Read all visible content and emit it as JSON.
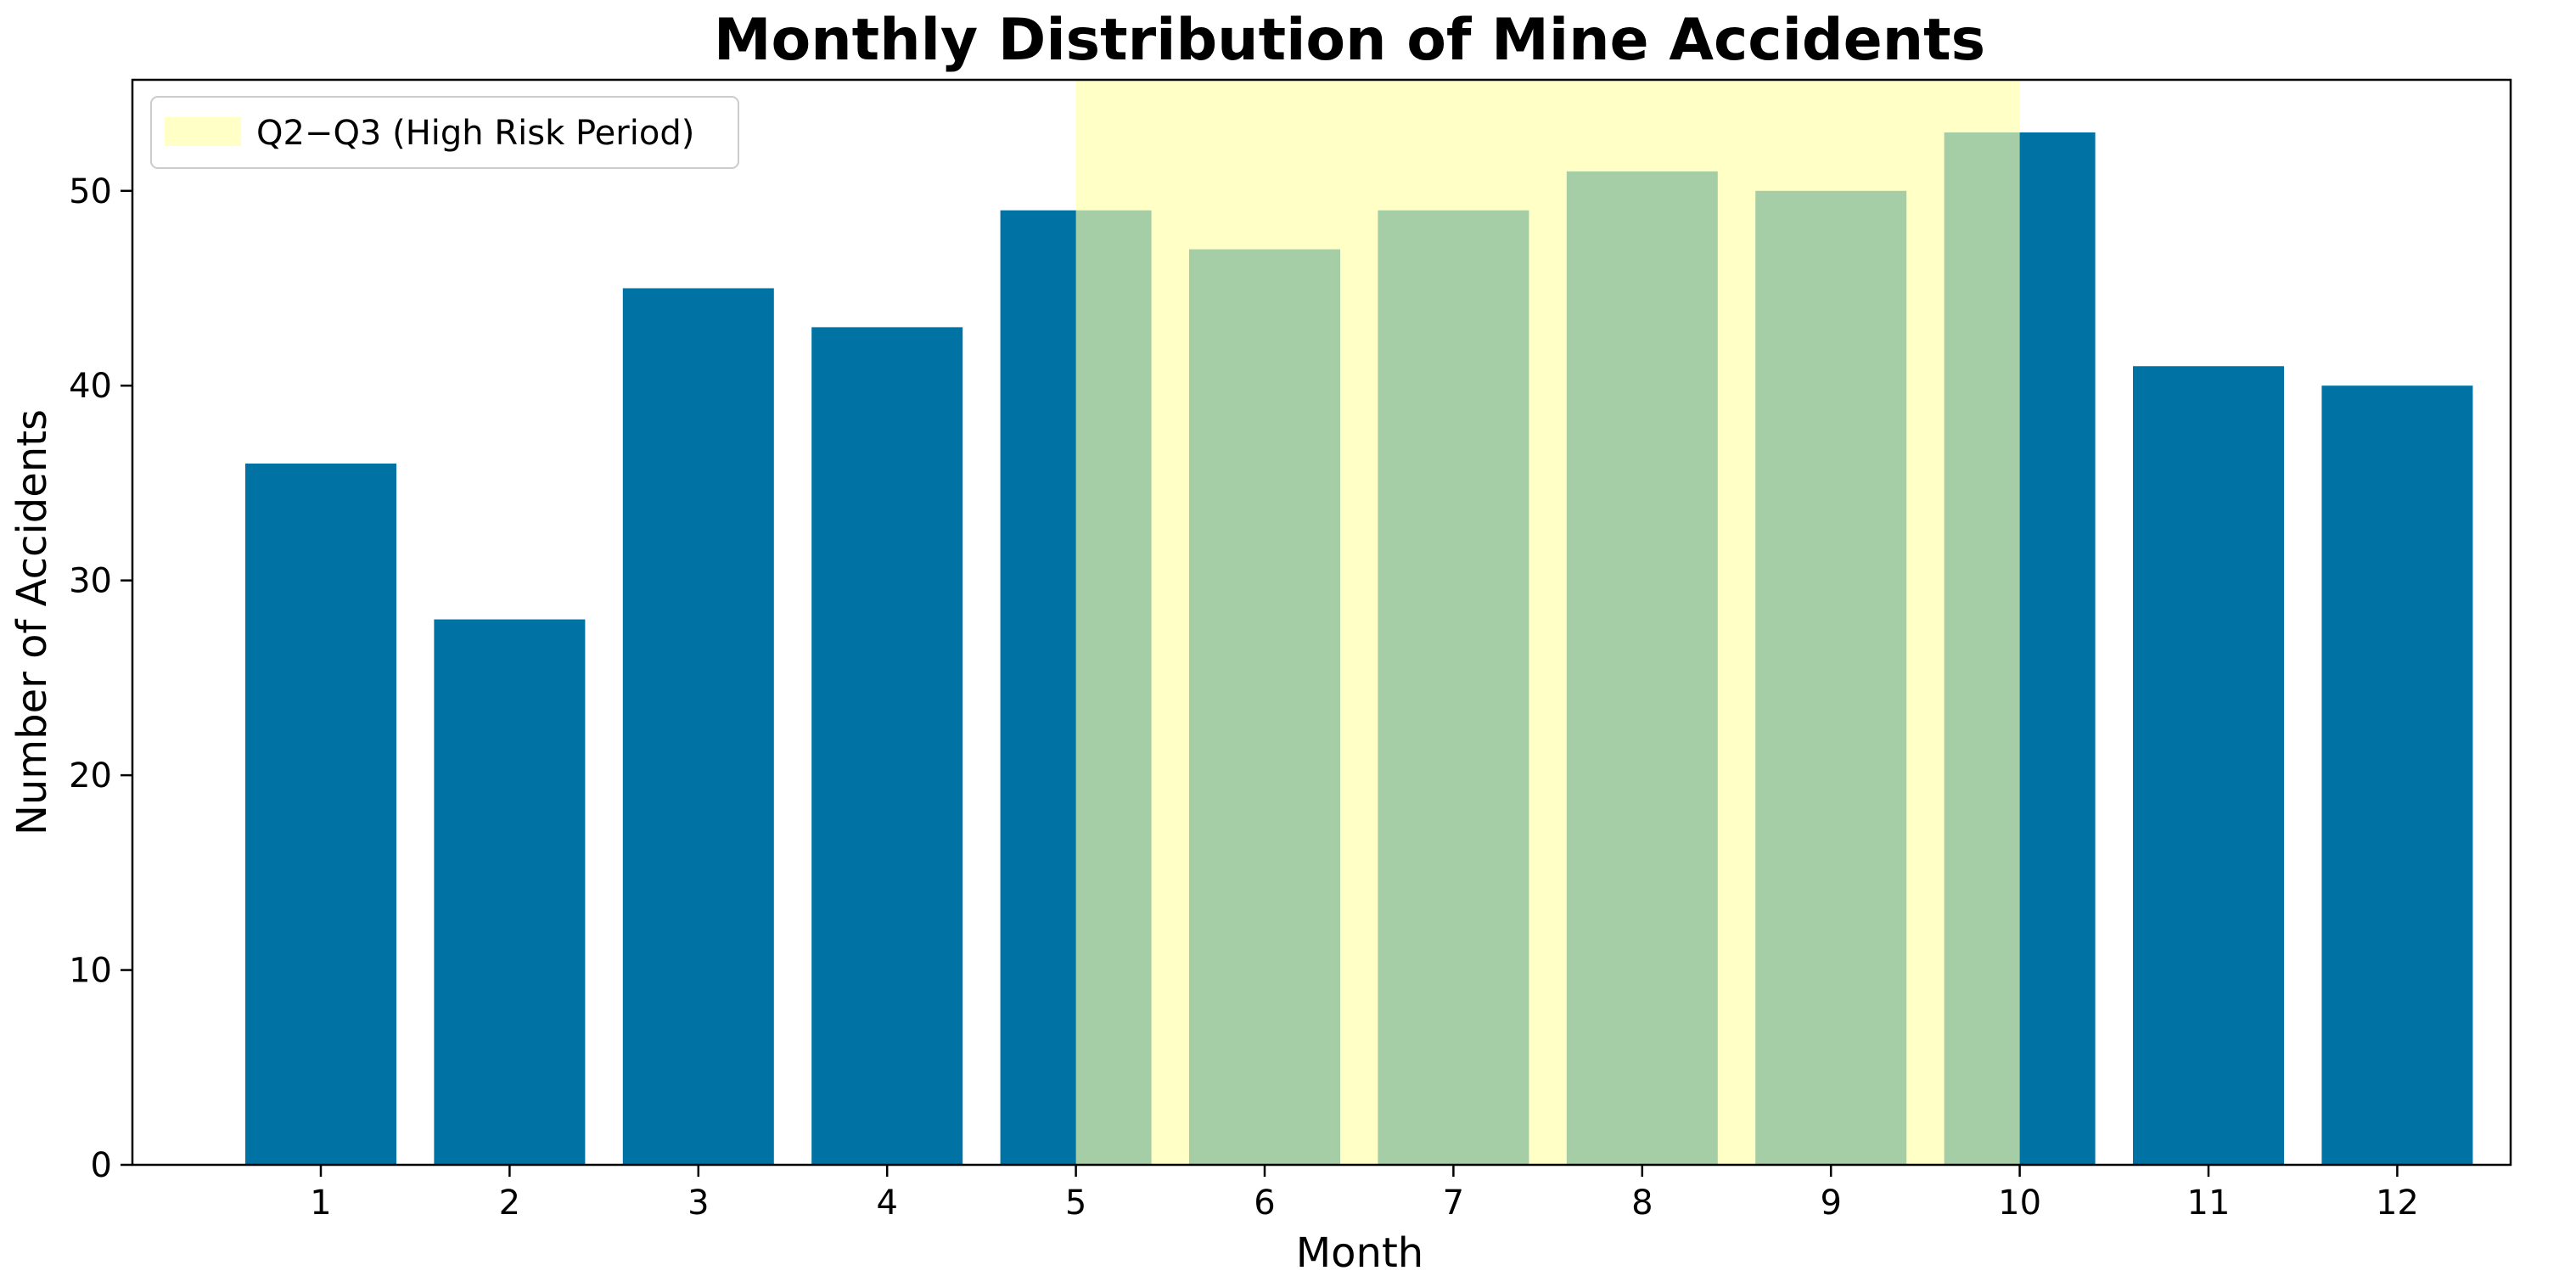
{
  "chart_data": {
    "type": "bar",
    "title": "Monthly Distribution of Mine Accidents",
    "xlabel": "Month",
    "ylabel": "Number of Accidents",
    "categories": [
      "1",
      "2",
      "3",
      "4",
      "5",
      "6",
      "7",
      "8",
      "9",
      "10",
      "11",
      "12"
    ],
    "values": [
      36,
      28,
      45,
      43,
      49,
      47,
      49,
      51,
      50,
      53,
      41,
      40
    ],
    "ylim": [
      0,
      55.7
    ],
    "yticks": [
      0,
      10,
      20,
      30,
      40,
      50
    ],
    "grid": false,
    "bar_color": "#0072a3",
    "highlight": {
      "label": "Q2−Q3 (High Risk Period)",
      "x_start": 5,
      "x_end": 10,
      "color": "#ffffa8",
      "alpha": 0.65
    },
    "legend_position": "top-left"
  }
}
